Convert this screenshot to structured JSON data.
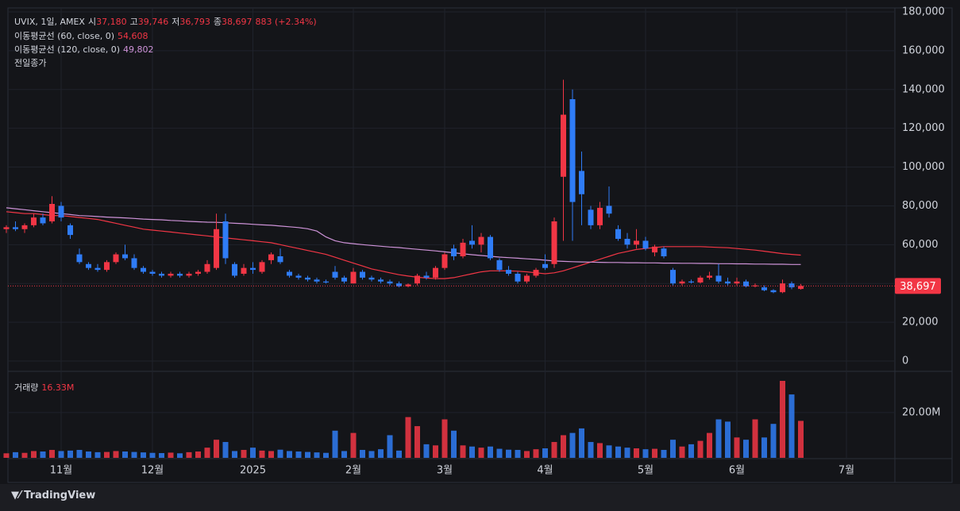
{
  "legend": {
    "symbol": "UVIX, 1일, AMEX",
    "open_label": "시",
    "open": "37,180",
    "high_label": "고",
    "high": "39,746",
    "low_label": "저",
    "low": "36,793",
    "close_label": "종",
    "close": "38,697",
    "change": "883 (+2.34%)",
    "ma60_value": "54,608",
    "ma120_value": "49,802",
    "prev_close": "전일종가",
    "volume_label": "거래량",
    "volume_value": "16.33M"
  },
  "brand": "TradingView",
  "chart_data": {
    "type": "candlestick",
    "categories": [
      null,
      null,
      null,
      null,
      null,
      null,
      "11월",
      null,
      null,
      null,
      null,
      null,
      null,
      null,
      null,
      null,
      "12월",
      null,
      null,
      null,
      null,
      null,
      null,
      null,
      null,
      null,
      null,
      "2025",
      null,
      null,
      null,
      null,
      null,
      null,
      null,
      null,
      null,
      null,
      "2월",
      null,
      null,
      null,
      null,
      null,
      null,
      null,
      null,
      null,
      "3월",
      null,
      null,
      null,
      null,
      null,
      null,
      null,
      null,
      null,
      null,
      "4월",
      null,
      null,
      null,
      null,
      null,
      null,
      null,
      null,
      null,
      null,
      "5월",
      null,
      null,
      null,
      null,
      null,
      null,
      null,
      null,
      null,
      "6월",
      null,
      null,
      null,
      null,
      null,
      null,
      null,
      null,
      null,
      null,
      null,
      "7월"
    ],
    "open": [
      68000,
      69000,
      68000,
      70000,
      74000,
      72000,
      80000,
      70000,
      55000,
      50000,
      48000,
      47000,
      51000,
      55000,
      53000,
      48000,
      46000,
      45000,
      44000,
      45000,
      44000,
      45000,
      46000,
      48000,
      72000,
      50000,
      45000,
      48000,
      46000,
      52000,
      54000,
      46000,
      44000,
      43000,
      42000,
      41000,
      46000,
      43000,
      40000,
      46000,
      43000,
      42000,
      41000,
      40000,
      38500,
      40000,
      44000,
      43000,
      48000,
      58000,
      54000,
      62000,
      60000,
      64000,
      52000,
      47000,
      45000,
      41000,
      44000,
      50000,
      50000,
      95000,
      135000,
      98000,
      78000,
      70000,
      80000,
      68000,
      63000,
      60000,
      62000,
      56000,
      58000,
      47000,
      40000,
      41000,
      40500,
      43000,
      44000,
      41000,
      40000,
      41000,
      38500,
      38000,
      36500,
      35500,
      40000,
      37180,
      null,
      null,
      null,
      null,
      null
    ],
    "high": [
      70000,
      72000,
      71000,
      76000,
      76000,
      85000,
      82000,
      71000,
      58000,
      51000,
      50000,
      52000,
      56000,
      60000,
      55000,
      49000,
      47000,
      46000,
      46000,
      46000,
      46000,
      47000,
      52000,
      76000,
      76000,
      51000,
      50000,
      51000,
      52000,
      56000,
      58000,
      47000,
      45000,
      44000,
      43000,
      42000,
      49000,
      44000,
      48000,
      47000,
      44000,
      43000,
      42000,
      41000,
      40000,
      45000,
      46000,
      49000,
      56000,
      60000,
      63000,
      70000,
      66000,
      65000,
      53000,
      49000,
      46000,
      45000,
      48000,
      55000,
      74000,
      145000,
      140000,
      108000,
      80000,
      82000,
      90000,
      70000,
      66000,
      68000,
      64000,
      60000,
      59000,
      48000,
      42000,
      42000,
      44000,
      46000,
      50000,
      43000,
      43000,
      42000,
      40000,
      39000,
      37000,
      42000,
      41000,
      39746,
      null,
      null,
      null,
      null,
      null
    ],
    "low": [
      66000,
      67000,
      66000,
      69000,
      70000,
      71000,
      72000,
      63000,
      50000,
      47000,
      46000,
      46000,
      50000,
      52000,
      47000,
      45000,
      44000,
      43000,
      43000,
      43000,
      43000,
      44000,
      45000,
      47000,
      50000,
      43000,
      44000,
      45000,
      45000,
      50000,
      50000,
      43000,
      42000,
      41000,
      40000,
      40000,
      42000,
      40000,
      40000,
      42000,
      41000,
      40000,
      39000,
      38000,
      38000,
      39000,
      42000,
      42000,
      47000,
      52000,
      53000,
      58000,
      56000,
      52000,
      46000,
      44000,
      40000,
      40000,
      43000,
      47000,
      48000,
      62000,
      62000,
      70000,
      68000,
      68000,
      74000,
      62000,
      58000,
      58000,
      57000,
      54000,
      53000,
      39000,
      39000,
      40000,
      40000,
      42000,
      40000,
      39000,
      39000,
      38000,
      38000,
      36000,
      35000,
      35000,
      37000,
      36793,
      null,
      null,
      null,
      null,
      null
    ],
    "close": [
      69000,
      68000,
      70000,
      74000,
      71000,
      81000,
      74000,
      65000,
      51000,
      48000,
      47000,
      51000,
      55000,
      53000,
      48000,
      46000,
      45000,
      44000,
      45000,
      44000,
      45000,
      46000,
      50000,
      68000,
      53000,
      44000,
      48000,
      47000,
      51000,
      55000,
      51000,
      44000,
      43000,
      42000,
      41000,
      40500,
      43000,
      41000,
      46000,
      43000,
      42000,
      41000,
      40000,
      38500,
      39500,
      44000,
      43000,
      48000,
      55000,
      54000,
      61000,
      60000,
      64000,
      53000,
      47000,
      45000,
      41000,
      44000,
      47000,
      48000,
      72000,
      127000,
      82000,
      86000,
      70000,
      79000,
      76000,
      63000,
      60000,
      62000,
      58000,
      59000,
      54000,
      40000,
      41000,
      40500,
      43000,
      44000,
      41000,
      40000,
      41000,
      38500,
      39000,
      36500,
      35500,
      40000,
      38000,
      38697,
      null,
      null,
      null,
      null,
      null
    ],
    "up_color": "#f23645",
    "down_color": "#2f7cf6",
    "ylim": [
      0,
      180000
    ],
    "yticks": [
      {
        "value": 0,
        "label": "0"
      },
      {
        "value": 20000,
        "label": "20,000"
      },
      {
        "value": 40000,
        "label": "40,000"
      },
      {
        "value": 60000,
        "label": "60,000"
      },
      {
        "value": 80000,
        "label": "80,000"
      },
      {
        "value": 100000,
        "label": "100,000"
      },
      {
        "value": 120000,
        "label": "120,000"
      },
      {
        "value": 140000,
        "label": "140,000"
      },
      {
        "value": 160000,
        "label": "160,000"
      },
      {
        "value": 180000,
        "label": "180,000"
      }
    ],
    "grid": true,
    "last_price": {
      "value": 38697,
      "label": "38,697"
    },
    "series": [
      {
        "name": "이동평균선 (60, close, 0)",
        "color": "#f23645",
        "values": [
          77000,
          76500,
          76000,
          76000,
          75500,
          75000,
          75000,
          74500,
          74000,
          73500,
          73000,
          72000,
          71000,
          70000,
          69000,
          68000,
          67500,
          67000,
          66500,
          66000,
          65500,
          65000,
          64500,
          64000,
          63500,
          63000,
          62500,
          62000,
          61500,
          61000,
          60000,
          59000,
          58000,
          57000,
          56000,
          55000,
          53500,
          52000,
          50500,
          49000,
          47500,
          46500,
          45500,
          44500,
          43800,
          43200,
          42800,
          42500,
          42500,
          43000,
          44000,
          45000,
          46000,
          46500,
          46500,
          46500,
          46300,
          46000,
          45500,
          45000,
          45500,
          46500,
          48000,
          49500,
          51000,
          52500,
          54000,
          55500,
          56500,
          57500,
          58000,
          58500,
          59000,
          59000,
          59000,
          59000,
          59000,
          58800,
          58600,
          58400,
          58000,
          57600,
          57200,
          56600,
          56000,
          55400,
          55000,
          54608,
          null,
          null,
          null,
          null,
          null
        ]
      },
      {
        "name": "이동평균선 (120, close, 0)",
        "color": "#ce93d8",
        "values": [
          79000,
          78500,
          78000,
          77500,
          77000,
          76500,
          76000,
          75500,
          75000,
          74800,
          74500,
          74200,
          74000,
          73800,
          73500,
          73200,
          73000,
          72800,
          72500,
          72300,
          72000,
          71800,
          71600,
          71500,
          71300,
          71000,
          70800,
          70500,
          70200,
          70000,
          69600,
          69200,
          68800,
          68200,
          67000,
          64000,
          62000,
          61000,
          60500,
          60000,
          59600,
          59200,
          58800,
          58500,
          58000,
          57600,
          57200,
          56800,
          56300,
          55800,
          55300,
          54800,
          54400,
          54000,
          53600,
          53300,
          53000,
          52700,
          52400,
          52000,
          51600,
          51400,
          51200,
          51100,
          51000,
          50900,
          50800,
          50800,
          50700,
          50700,
          50600,
          50600,
          50500,
          50500,
          50400,
          50400,
          50300,
          50300,
          50200,
          50200,
          50100,
          50100,
          50000,
          50000,
          49900,
          49900,
          49800,
          49802,
          null,
          null,
          null,
          null,
          null
        ]
      }
    ],
    "volume": {
      "values": [
        2.0,
        2.5,
        2.2,
        3.0,
        2.8,
        3.5,
        3.0,
        3.2,
        3.5,
        2.8,
        2.5,
        2.6,
        3.0,
        2.8,
        2.6,
        2.4,
        2.2,
        2.1,
        2.3,
        2.0,
        2.5,
        2.8,
        4.5,
        8.0,
        7.0,
        3.0,
        3.5,
        4.5,
        3.2,
        3.0,
        3.6,
        3.0,
        2.8,
        2.6,
        2.4,
        2.2,
        12,
        3.0,
        11,
        3.5,
        3.0,
        3.8,
        10,
        3.2,
        18,
        14,
        6.0,
        5.5,
        17,
        12,
        5.5,
        5.0,
        4.5,
        5.0,
        4.0,
        3.6,
        3.5,
        3.0,
        3.8,
        4.2,
        7.0,
        10,
        11,
        13,
        7.0,
        6.5,
        5.5,
        5.0,
        4.5,
        4.2,
        3.8,
        4.0,
        3.5,
        8.0,
        5.0,
        6.0,
        7.5,
        11,
        17,
        16,
        9.0,
        8.0,
        17,
        9,
        15,
        34,
        28,
        16.33,
        null,
        null,
        null,
        null,
        null
      ],
      "ylim": [
        0,
        37.5
      ],
      "yticks": [
        {
          "value": 20,
          "label": "20.00M"
        }
      ]
    }
  }
}
